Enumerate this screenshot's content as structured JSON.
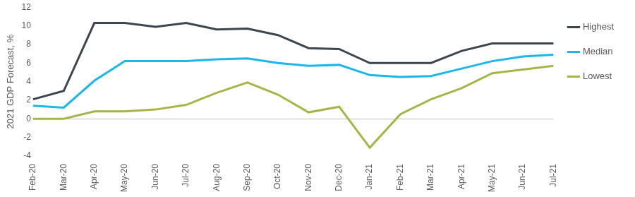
{
  "chart_data": {
    "type": "line",
    "y_label": "2021 GDP Forecast, %",
    "categories": [
      "Feb-20",
      "Mar-20",
      "Apr-20",
      "May-20",
      "Jun-20",
      "Jul-20",
      "Aug-20",
      "Sep-20",
      "Oct-20",
      "Nov-20",
      "Dec-20",
      "Jan-21",
      "Feb-21",
      "Mar-21",
      "Apr-21",
      "May-21",
      "Jun-21",
      "Jul-21"
    ],
    "series": [
      {
        "name": "Highest",
        "color": "#3c4650",
        "values": [
          2.1,
          3.0,
          10.3,
          10.3,
          9.9,
          10.3,
          9.6,
          9.7,
          9.0,
          7.6,
          7.5,
          6.0,
          6.0,
          6.0,
          7.3,
          8.1,
          8.1,
          8.1
        ]
      },
      {
        "name": "Median",
        "color": "#1ab7e8",
        "values": [
          1.4,
          1.2,
          4.1,
          6.2,
          6.2,
          6.2,
          6.4,
          6.5,
          6.0,
          5.7,
          5.8,
          4.7,
          4.5,
          4.6,
          5.4,
          6.2,
          6.7,
          6.9
        ]
      },
      {
        "name": "Lowest",
        "color": "#a8b546",
        "values": [
          0.0,
          0.0,
          0.8,
          0.8,
          1.0,
          1.5,
          2.8,
          3.9,
          2.6,
          0.7,
          1.3,
          -3.1,
          0.5,
          2.1,
          3.3,
          4.9,
          5.3,
          5.7
        ]
      }
    ],
    "ylim": [
      -4,
      12
    ],
    "yticks": [
      -4,
      -2,
      0,
      2,
      4,
      6,
      8,
      10,
      12
    ],
    "grid": false,
    "legend": "right"
  }
}
